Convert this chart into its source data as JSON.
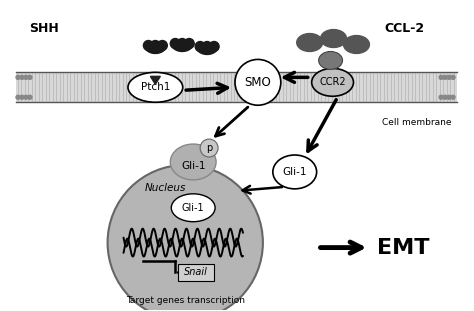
{
  "fig_width": 4.74,
  "fig_height": 3.11,
  "dpi": 100,
  "bg_color": "#ffffff",
  "shh_label": "SHH",
  "ccl2_label": "CCL-2",
  "cell_membrane_label": "Cell membrane",
  "emt_label": "EMT",
  "nucleus_label": "Nucleus",
  "target_genes_label": "Target genes transcription",
  "snail_label": "Snail",
  "ptch1_label": "Ptch1",
  "smo_label": "SMO",
  "ccr2_label": "CCR2",
  "gli1_label": "Gli-1",
  "p_label": "p"
}
